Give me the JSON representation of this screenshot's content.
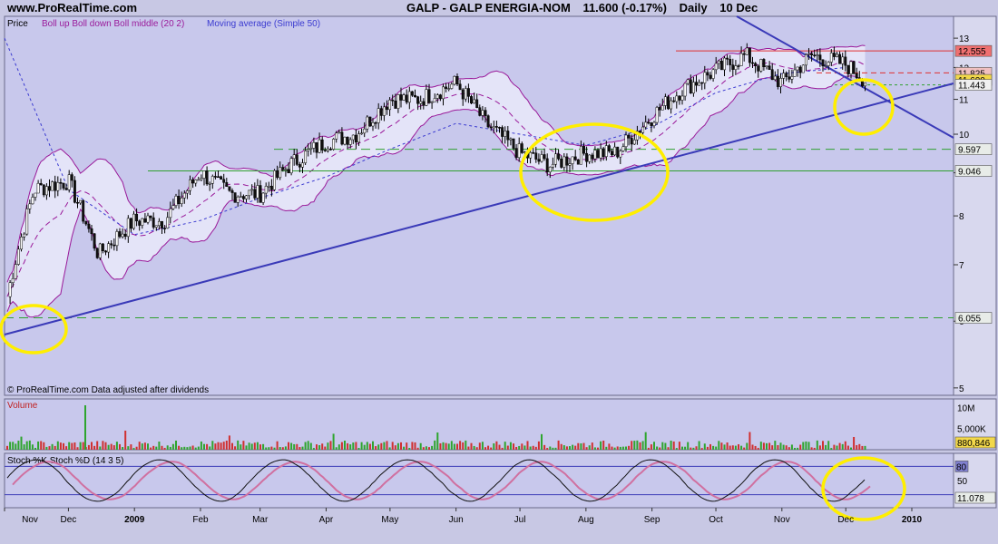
{
  "header": {
    "site": "www.ProRealTime.com",
    "symbol": "GALP - GALP ENERGIA-NOM",
    "last": "11.600 (-0.17%)",
    "period": "Daily",
    "date": "10 Dec"
  },
  "price_panel": {
    "label": "Price",
    "legend_boll": "Boll up Boll down Boll middle (20 2)",
    "legend_ma": "Moving average (Simple 50)",
    "footer": "© ProRealTime.com  Data adjusted after dividends",
    "price_ticks": [
      "13",
      "12",
      "11",
      "10",
      "9",
      "8",
      "7",
      "6",
      "5"
    ],
    "price_tags": [
      {
        "text": "12.555",
        "bg": "#f07070"
      },
      {
        "text": "11.825",
        "bg": "#f0c0c0"
      },
      {
        "text": "11.600",
        "bg": "#f2d84a"
      },
      {
        "text": "11.443",
        "bg": "#f0f0f0"
      },
      {
        "text": "9.597",
        "bg": "#e8ece8"
      },
      {
        "text": "9.046",
        "bg": "#e8ece8"
      },
      {
        "text": "6.055",
        "bg": "#e8ece8"
      }
    ]
  },
  "volume_panel": {
    "label": "Volume",
    "ticks": [
      "10M",
      "5,000K"
    ],
    "last_tag": "880,846"
  },
  "stoch_panel": {
    "label": "Stoch %K  Stoch %D (14 3 5)",
    "ticks": [
      "80",
      "50"
    ],
    "last_tag": "11.078"
  },
  "x_axis": {
    "months": [
      "Nov",
      "Dec",
      "2009",
      "Feb",
      "Mar",
      "Apr",
      "May",
      "Jun",
      "Jul",
      "Aug",
      "Sep",
      "Oct",
      "Nov",
      "Dec",
      "2010"
    ]
  },
  "colors": {
    "panel_bg": "#c8c8ec",
    "band_fill": "#e4e4f8",
    "boll_line": "#9a1a9a",
    "ma_line": "#3a3ad0",
    "trend_line": "#3a3ab8",
    "highlight": "#ffee00",
    "level_red": "#e03030",
    "level_green": "#30a030"
  },
  "chart_data": {
    "type": "candlestick",
    "title": "GALP - GALP ENERGIA-NOM",
    "ylabel": "Price",
    "ylim": [
      4.9,
      13.8
    ],
    "yscale": "log",
    "series": [
      {
        "name": "Price",
        "x": [
          "2008-11-01",
          "2008-11-15",
          "2008-12-01",
          "2008-12-15",
          "2009-01-01",
          "2009-01-15",
          "2009-02-01",
          "2009-02-15",
          "2009-03-01",
          "2009-03-15",
          "2009-04-01",
          "2009-04-15",
          "2009-05-01",
          "2009-05-15",
          "2009-06-01",
          "2009-06-15",
          "2009-07-01",
          "2009-07-15",
          "2009-08-01",
          "2009-08-15",
          "2009-09-01",
          "2009-09-15",
          "2009-10-01",
          "2009-10-15",
          "2009-11-01",
          "2009-11-15",
          "2009-12-01",
          "2009-12-10"
        ],
        "values": [
          6.2,
          8.6,
          8.8,
          7.2,
          7.9,
          7.9,
          9.0,
          8.5,
          8.5,
          9.2,
          9.8,
          10.0,
          11.0,
          11.0,
          11.5,
          10.3,
          9.5,
          9.2,
          9.5,
          9.5,
          10.5,
          11.3,
          11.9,
          12.4,
          11.5,
          12.4,
          12.1,
          11.6
        ]
      },
      {
        "name": "Moving average (Simple 50)",
        "x": [
          "2008-11-01",
          "2008-12-01",
          "2009-01-01",
          "2009-02-01",
          "2009-03-01",
          "2009-04-01",
          "2009-05-01",
          "2009-06-01",
          "2009-07-01",
          "2009-08-01",
          "2009-09-01",
          "2009-10-01",
          "2009-11-01",
          "2009-12-01"
        ],
        "values": [
          13.0,
          8.6,
          7.6,
          7.9,
          8.4,
          8.9,
          9.6,
          10.3,
          10.0,
          9.7,
          10.2,
          11.2,
          11.8,
          12.0
        ]
      }
    ],
    "levels": [
      12.555,
      11.825,
      11.443,
      9.597,
      9.046,
      6.055
    ],
    "volume_axis": [
      "10M",
      "5,000K"
    ],
    "stochastic_levels": [
      80,
      50
    ],
    "x_ticks": [
      "Nov",
      "Dec",
      "2009",
      "Feb",
      "Mar",
      "Apr",
      "May",
      "Jun",
      "Jul",
      "Aug",
      "Sep",
      "Oct",
      "Nov",
      "Dec",
      "2010"
    ]
  }
}
